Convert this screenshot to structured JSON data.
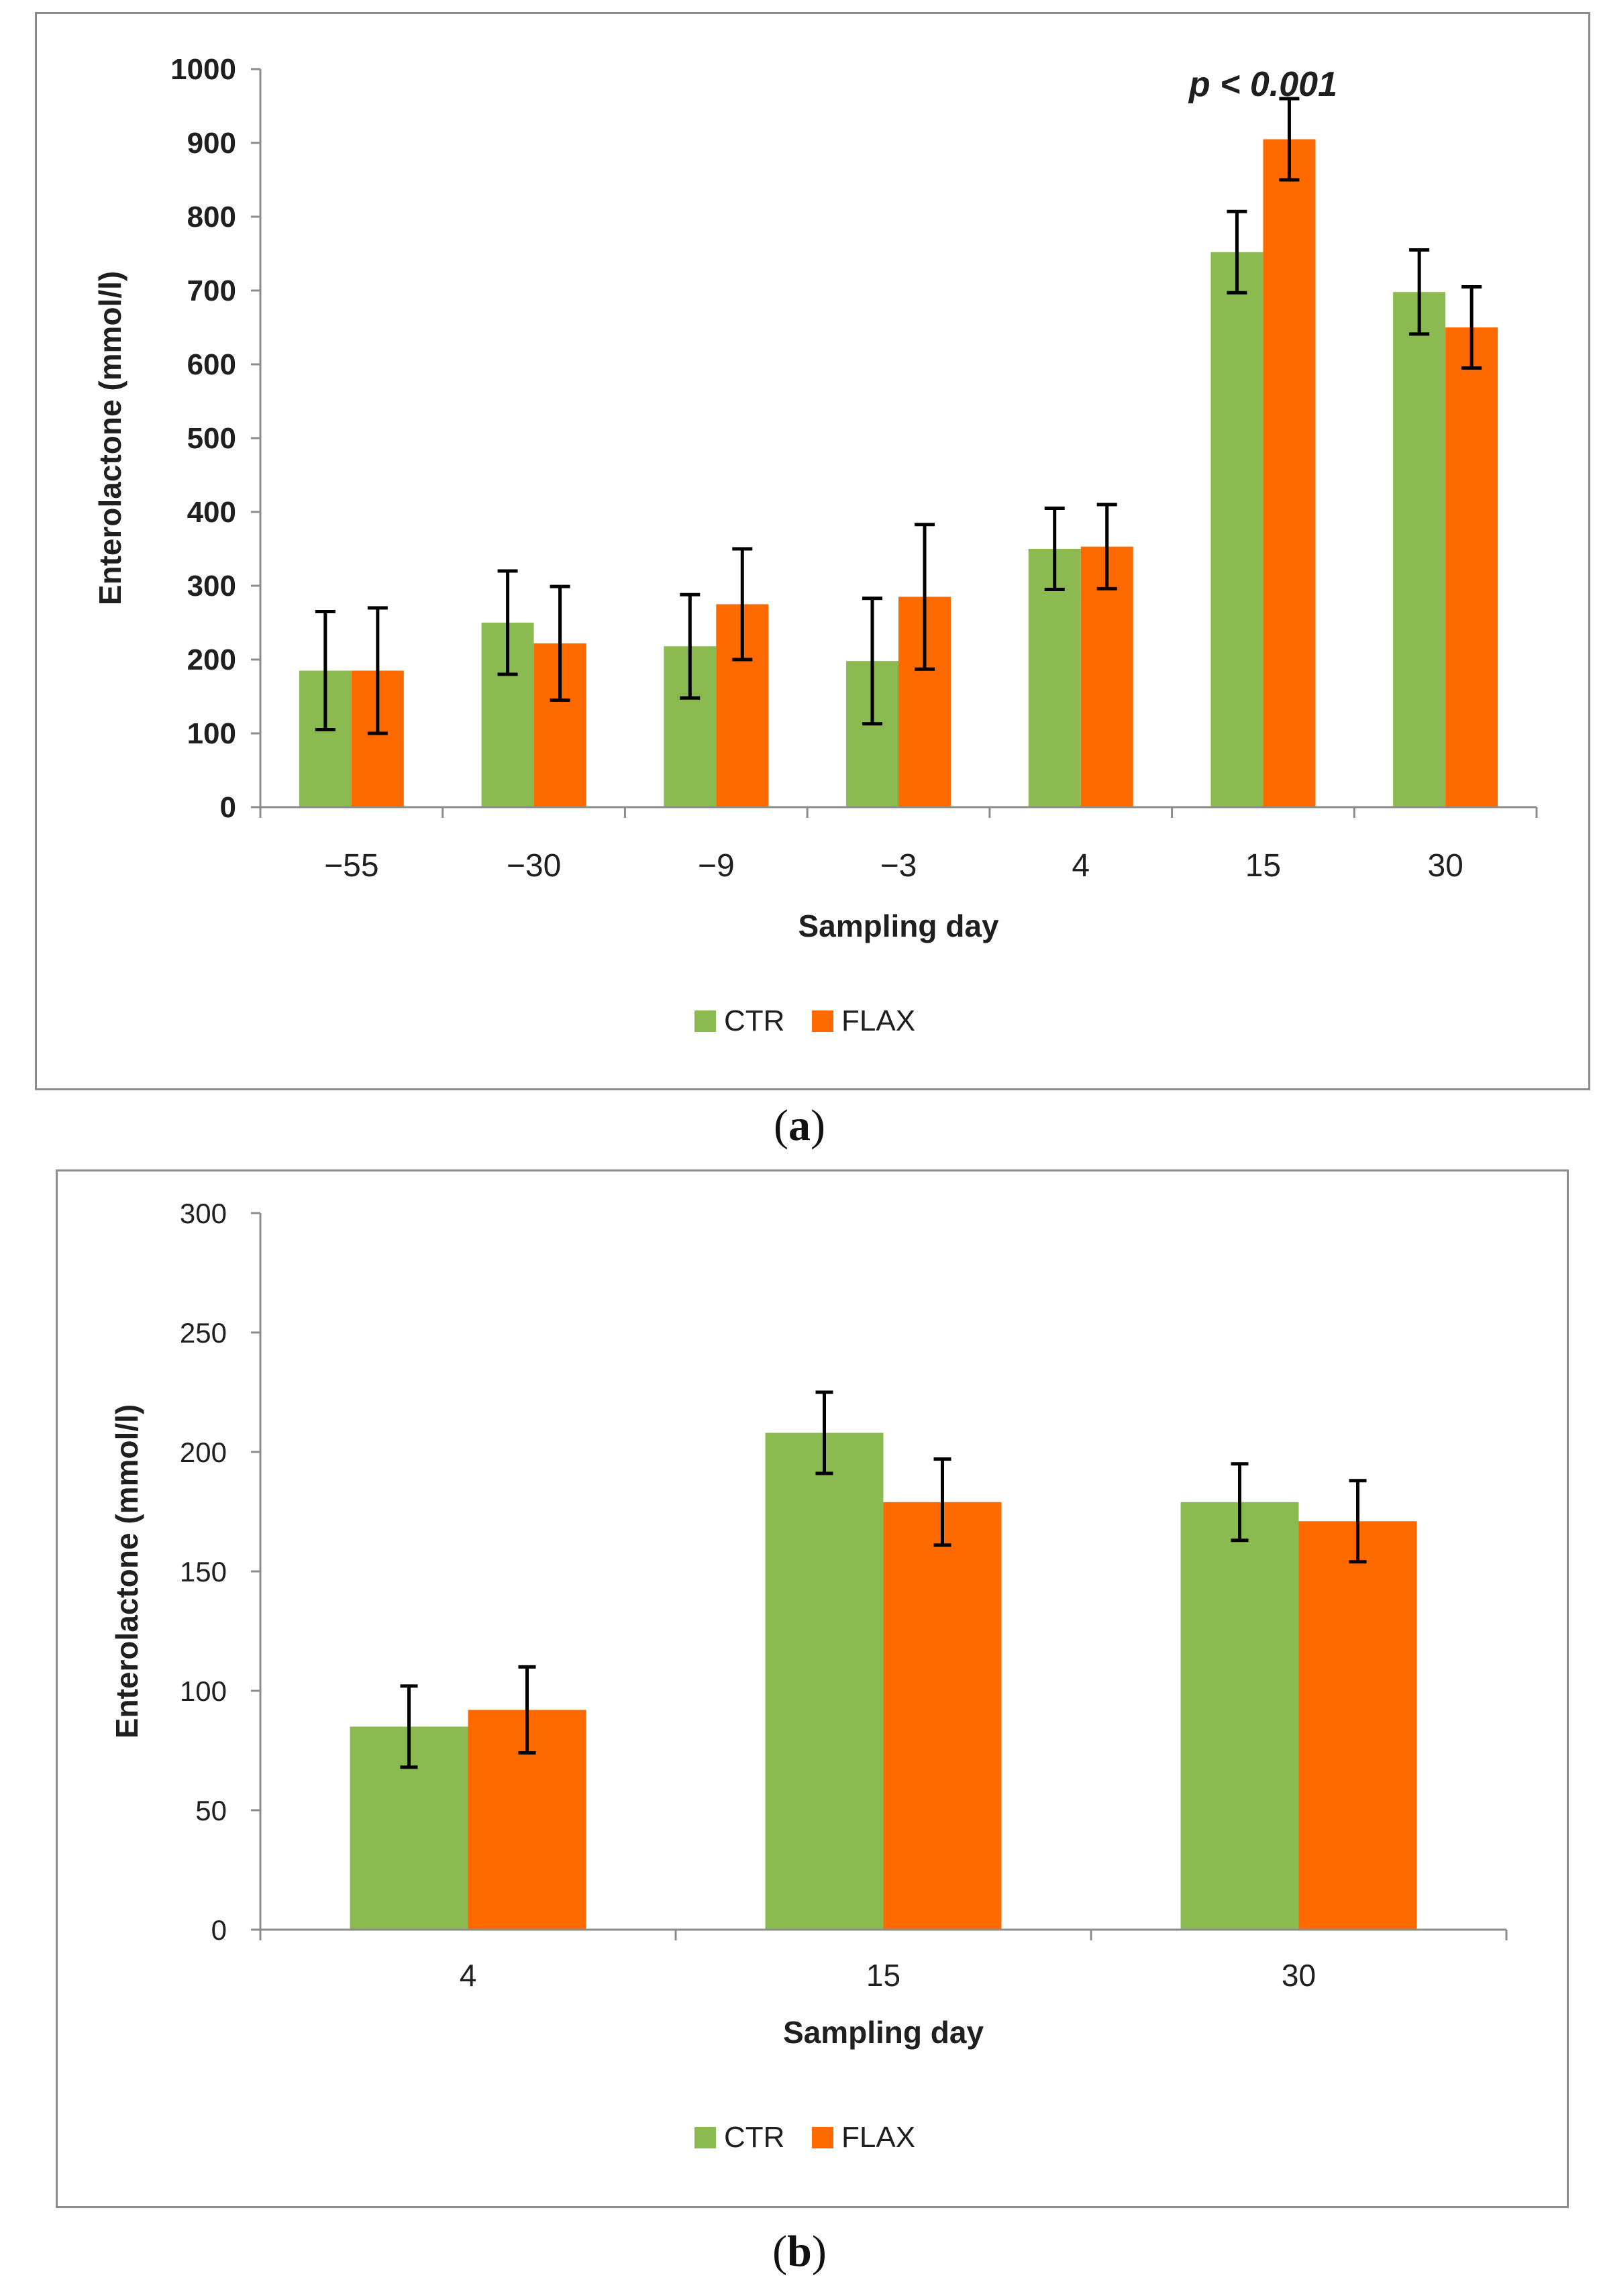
{
  "chart_data": [
    {
      "panel_label": "a",
      "type": "bar",
      "title": "",
      "xlabel": "Sampling day",
      "ylabel": "Enterolactone (mmol/l)",
      "categories": [
        "−55",
        "−30",
        "−9",
        "−3",
        "4",
        "15",
        "30"
      ],
      "ylim": [
        0,
        1000
      ],
      "yticks": [
        0,
        100,
        200,
        300,
        400,
        500,
        600,
        700,
        800,
        900,
        1000
      ],
      "series": [
        {
          "name": "CTR",
          "color": "#8bbb50",
          "values": [
            185,
            250,
            218,
            198,
            350,
            752,
            698
          ],
          "error": [
            80,
            70,
            70,
            85,
            55,
            55,
            57
          ]
        },
        {
          "name": "FLAX",
          "color": "#ff6a00",
          "values": [
            185,
            222,
            275,
            285,
            353,
            905,
            650
          ],
          "error": [
            85,
            77,
            75,
            98,
            57,
            55,
            55
          ]
        }
      ],
      "annotation": {
        "text": "p < 0.001",
        "category": "15",
        "value": 960
      },
      "legend_position": "bottom-center"
    },
    {
      "panel_label": "b",
      "type": "bar",
      "title": "",
      "xlabel": "Sampling day",
      "ylabel": "Enterolactone (mmol/l)",
      "categories": [
        "4",
        "15",
        "30"
      ],
      "ylim": [
        0,
        300
      ],
      "yticks": [
        0,
        50,
        100,
        150,
        200,
        250,
        300
      ],
      "series": [
        {
          "name": "CTR",
          "color": "#8bbb50",
          "values": [
            85,
            208,
            179
          ],
          "error": [
            17,
            17,
            16
          ]
        },
        {
          "name": "FLAX",
          "color": "#ff6a00",
          "values": [
            92,
            179,
            171
          ],
          "error": [
            18,
            18,
            17
          ]
        }
      ],
      "legend_position": "bottom-center"
    }
  ]
}
